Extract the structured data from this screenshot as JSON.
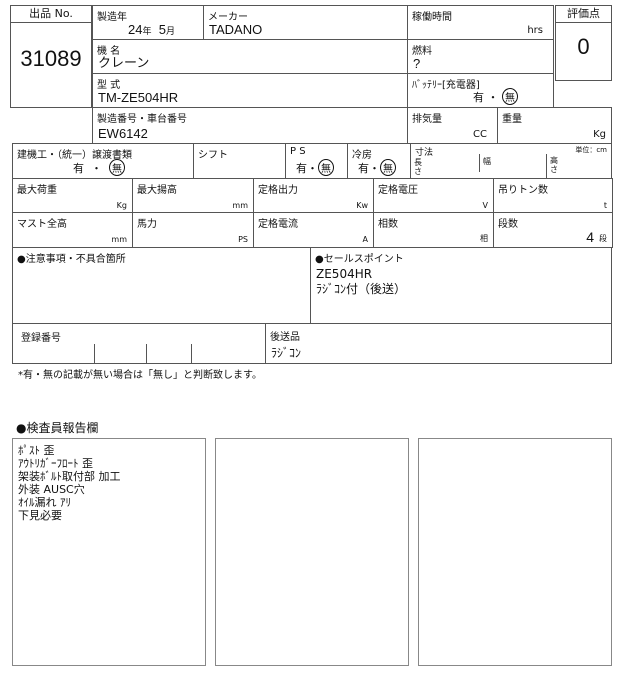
{
  "lot": {
    "label": "出品 No.",
    "value": "31089"
  },
  "year": {
    "label": "製造年",
    "year": "24",
    "year_unit": "年",
    "month": "5",
    "month_unit": "月"
  },
  "maker": {
    "label": "メーカー",
    "value": "TADANO"
  },
  "hours": {
    "label": "稼働時間",
    "unit": "hrs"
  },
  "score": {
    "label": "評価点",
    "value": "0"
  },
  "model_name": {
    "label": "機 名",
    "value": "クレーン"
  },
  "fuel": {
    "label": "燃料",
    "value": "?"
  },
  "model": {
    "label": "型 式",
    "value": "TM-ZE504HR"
  },
  "battery": {
    "label": "ﾊﾞｯﾃﾘｰ[充電器]",
    "yes": "有",
    "sep": "・",
    "no": "無",
    "selected": "無"
  },
  "serial": {
    "label": "製造番号・車台番号",
    "value": "EW6142"
  },
  "displacement": {
    "label": "排気量",
    "unit": "CC"
  },
  "weight": {
    "label": "重量",
    "unit": "Kg"
  },
  "docs": {
    "label": "建機工・（統一）譲渡書類",
    "yes": "有",
    "sep": "・",
    "no": "無",
    "selected": "無"
  },
  "shift": {
    "label": "シフト"
  },
  "ps": {
    "label": "P S",
    "yes": "有",
    "sep": "・",
    "no": "無",
    "selected": "無"
  },
  "ac": {
    "label": "冷房",
    "yes": "有",
    "sep": "・",
    "no": "無",
    "selected": "無"
  },
  "dims": {
    "label": "寸法",
    "unit_note": "単位：cm",
    "length": "長さ",
    "width": "幅",
    "height": "高さ"
  },
  "specs_row1": [
    {
      "label": "最大荷重",
      "unit": "Kg",
      "value": ""
    },
    {
      "label": "最大揚高",
      "unit": "mm",
      "value": ""
    },
    {
      "label": "定格出力",
      "unit": "Kw",
      "value": ""
    },
    {
      "label": "定格電圧",
      "unit": "V",
      "value": ""
    },
    {
      "label": "吊りトン数",
      "unit": "t",
      "value": ""
    }
  ],
  "specs_row2": [
    {
      "label": "マスト全高",
      "unit": "mm",
      "value": ""
    },
    {
      "label": "馬力",
      "unit": "PS",
      "value": ""
    },
    {
      "label": "定格電流",
      "unit": "A",
      "value": ""
    },
    {
      "label": "相数",
      "unit": "相",
      "value": ""
    },
    {
      "label": "段数",
      "unit": "段",
      "value": "4"
    }
  ],
  "notes": {
    "label": "●注意事項・不具合箇所"
  },
  "sales": {
    "label": "●セールスポイント",
    "lines": "ZE504HR\nﾗｼﾞｺﾝ付（後送）"
  },
  "registration": {
    "label": "登録番号"
  },
  "deferred": {
    "label": "後送品",
    "value": "ﾗｼﾞｺﾝ"
  },
  "footnote": "*有・無の記載が無い場合は「無し」と判断致します。",
  "inspector": {
    "label": "●検査員報告欄",
    "box1": "ﾎﾟｽﾄ 歪\nｱｳﾄﾘｶﾞｰﾌﾛｰﾄ 歪\n架装ﾎﾞﾙﾄ取付部 加工\n外装 AUSC穴\nｵｲﾙ漏れ ｱﾘ\n下見必要",
    "box2": "",
    "box3": ""
  }
}
